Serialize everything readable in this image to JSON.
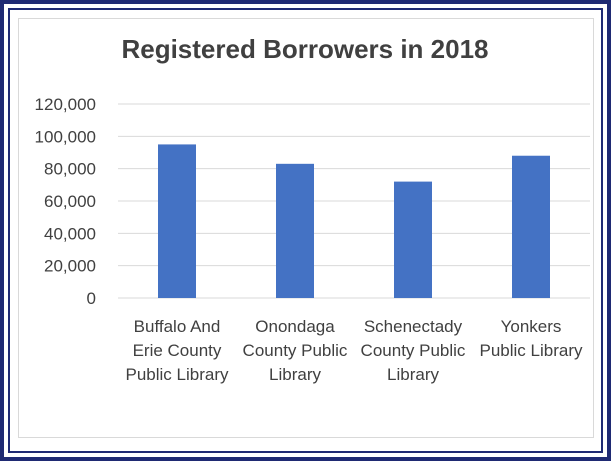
{
  "chart_data": {
    "type": "bar",
    "title": "Registered Borrowers in 2018",
    "xlabel": "",
    "ylabel": "",
    "categories": [
      "Buffalo And Erie County Public Library",
      "Onondaga County Public Library",
      "Schenectady County Public Library",
      "Yonkers Public Library"
    ],
    "category_lines": [
      [
        "Buffalo And",
        "Erie County",
        "Public Library"
      ],
      [
        "Onondaga",
        "County Public",
        "Library"
      ],
      [
        "Schenectady",
        "County Public",
        "Library"
      ],
      [
        "Yonkers",
        "Public Library"
      ]
    ],
    "values": [
      95000,
      83000,
      72000,
      88000
    ],
    "ylim": [
      0,
      120000
    ],
    "yticks": [
      0,
      20000,
      40000,
      60000,
      80000,
      100000,
      120000
    ],
    "ytick_labels": [
      "0",
      "20,000",
      "40,000",
      "60,000",
      "80,000",
      "100,000",
      "120,000"
    ],
    "grid": true,
    "legend": "none",
    "colors": {
      "bar": "#4472c4",
      "grid": "#d9d9d9",
      "text": "#404040",
      "frame": "#1f2a73"
    }
  }
}
